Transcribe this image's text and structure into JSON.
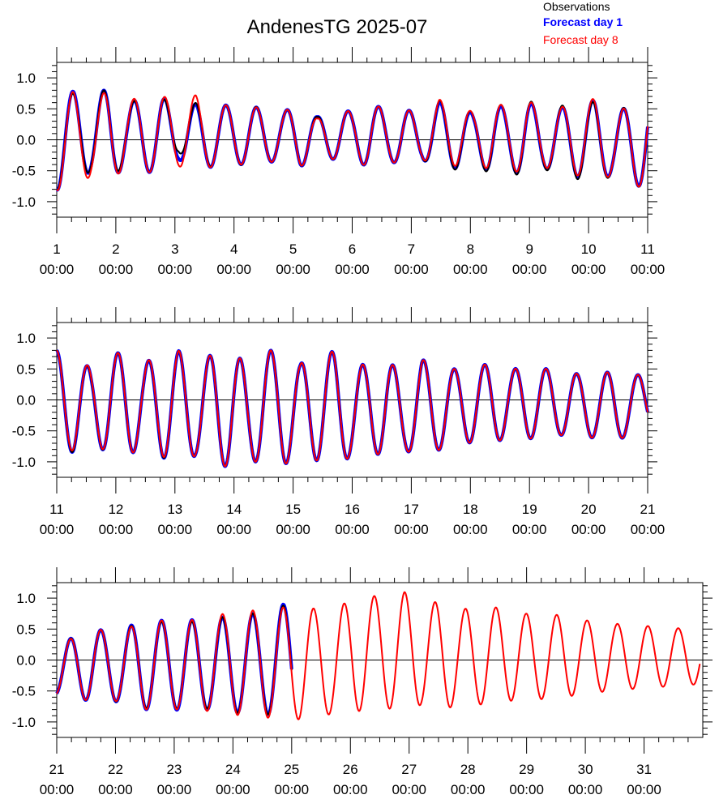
{
  "chart_data": {
    "type": "line",
    "title": "AndenesTG 2025-07",
    "legend": [
      {
        "label": "Observations",
        "color": "#000000",
        "bold": false
      },
      {
        "label": "Forecast day 1",
        "color": "#0000ff",
        "bold": true
      },
      {
        "label": "Forecast day 8",
        "color": "#ff0000",
        "bold": false
      }
    ],
    "legend_position": "top-right",
    "ylim": [
      -1.25,
      1.25
    ],
    "yticks": [
      "1.0",
      "0.5",
      "0.0",
      "-0.5",
      "-1.0"
    ],
    "ytick_values": [
      1.0,
      0.5,
      0.0,
      -0.5,
      -1.0
    ],
    "x_unit": "day of July 2025",
    "panels": [
      {
        "xrange": [
          1,
          11
        ],
        "xticks": [
          {
            "day": "1",
            "time": "00:00"
          },
          {
            "day": "2",
            "time": "00:00"
          },
          {
            "day": "3",
            "time": "00:00"
          },
          {
            "day": "4",
            "time": "00:00"
          },
          {
            "day": "5",
            "time": "00:00"
          },
          {
            "day": "6",
            "time": "00:00"
          },
          {
            "day": "7",
            "time": "00:00"
          },
          {
            "day": "8",
            "time": "00:00"
          },
          {
            "day": "9",
            "time": "00:00"
          },
          {
            "day": "10",
            "time": "00:00"
          },
          {
            "day": "11",
            "time": "00:00"
          }
        ],
        "series": [
          {
            "name": "Observations",
            "x0": 1.0,
            "x1": 11.0,
            "amp": [
              0.82,
              0.66,
              0.6,
              0.75,
              0.48,
              0.6,
              0.62,
              0.32,
              0.5,
              0.5,
              0.48,
              0.49,
              0.43,
              0.4,
              0.5,
              0.32,
              0.4,
              0.4,
              0.52,
              0.42,
              0.44,
              0.36,
              0.58,
              0.52,
              0.42,
              0.58,
              0.52,
              0.66,
              0.48,
              0.55,
              0.62,
              0.66,
              0.5,
              0.66,
              0.78
            ],
            "mean": [
              0.0,
              0.08,
              0.08,
              0.1,
              0.1,
              0.08,
              0.08,
              0.12,
              0.1,
              0.06,
              0.08,
              0.08,
              0.06,
              0.06,
              0.06,
              0.05,
              0.08,
              0.06,
              0.08,
              0.06,
              0.06,
              0.05,
              0.06,
              0.04,
              0.02,
              0.02,
              0.02,
              0.02,
              0.0,
              0.0,
              -0.02,
              -0.05,
              -0.08,
              -0.08,
              0.0
            ]
          },
          {
            "name": "Forecast day 1",
            "x0": 1.0,
            "x1": 11.0,
            "amp": [
              0.82,
              0.7,
              0.6,
              0.75,
              0.52,
              0.6,
              0.62,
              0.42,
              0.52,
              0.5,
              0.48,
              0.48,
              0.43,
              0.4,
              0.5,
              0.32,
              0.4,
              0.4,
              0.52,
              0.42,
              0.44,
              0.36,
              0.55,
              0.5,
              0.4,
              0.55,
              0.5,
              0.62,
              0.46,
              0.52,
              0.6,
              0.64,
              0.5,
              0.64,
              0.78
            ],
            "mean": [
              0.0,
              0.08,
              0.08,
              0.1,
              0.08,
              0.08,
              0.08,
              0.1,
              0.06,
              0.06,
              0.08,
              0.08,
              0.06,
              0.06,
              0.06,
              0.05,
              0.08,
              0.06,
              0.08,
              0.06,
              0.06,
              0.05,
              0.06,
              0.04,
              0.02,
              0.02,
              0.02,
              0.02,
              0.0,
              0.0,
              0.0,
              0.0,
              -0.08,
              -0.08,
              0.0
            ]
          },
          {
            "name": "Forecast day 8",
            "x0": 1.0,
            "x1": 11.0,
            "amp": [
              0.82,
              0.77,
              0.58,
              0.75,
              0.55,
              0.6,
              0.62,
              0.55,
              0.6,
              0.5,
              0.48,
              0.48,
              0.43,
              0.4,
              0.5,
              0.3,
              0.4,
              0.4,
              0.52,
              0.42,
              0.44,
              0.36,
              0.55,
              0.5,
              0.4,
              0.55,
              0.5,
              0.62,
              0.46,
              0.52,
              0.62,
              0.66,
              0.5,
              0.64,
              0.8
            ],
            "mean": [
              0.0,
              0.0,
              0.0,
              0.08,
              0.1,
              0.08,
              0.08,
              0.12,
              0.12,
              0.06,
              0.08,
              0.08,
              0.06,
              0.06,
              0.06,
              0.04,
              0.08,
              0.06,
              0.08,
              0.06,
              0.06,
              0.05,
              0.1,
              0.08,
              0.04,
              0.05,
              0.04,
              0.04,
              0.02,
              0.0,
              0.04,
              0.0,
              -0.08,
              -0.08,
              0.0
            ]
          }
        ]
      },
      {
        "xrange": [
          11,
          21
        ],
        "xticks": [
          {
            "day": "11",
            "time": "00:00"
          },
          {
            "day": "12",
            "time": "00:00"
          },
          {
            "day": "13",
            "time": "00:00"
          },
          {
            "day": "14",
            "time": "00:00"
          },
          {
            "day": "15",
            "time": "00:00"
          },
          {
            "day": "16",
            "time": "00:00"
          },
          {
            "day": "17",
            "time": "00:00"
          },
          {
            "day": "18",
            "time": "00:00"
          },
          {
            "day": "19",
            "time": "00:00"
          },
          {
            "day": "20",
            "time": "00:00"
          },
          {
            "day": "21",
            "time": "00:00"
          }
        ],
        "series": [
          {
            "name": "Observations",
            "x0": 11.0,
            "x1": 21.0,
            "amp": [
              0.8,
              0.75,
              0.62,
              0.8,
              0.82,
              0.7,
              0.85,
              0.92,
              0.72,
              0.88,
              0.96,
              0.78,
              0.9,
              0.92,
              0.78,
              0.88,
              0.88,
              0.72,
              0.74,
              0.78,
              0.6,
              0.78,
              0.66,
              0.6,
              0.64,
              0.64,
              0.54,
              0.58,
              0.56,
              0.52,
              0.5,
              0.52,
              0.56,
              0.48,
              0.44
            ],
            "mean": [
              0.0,
              -0.1,
              -0.1,
              -0.05,
              -0.05,
              -0.12,
              -0.07,
              -0.12,
              -0.18,
              -0.12,
              -0.15,
              -0.22,
              -0.1,
              -0.12,
              -0.2,
              -0.1,
              -0.1,
              -0.22,
              -0.12,
              -0.12,
              -0.22,
              -0.12,
              -0.15,
              -0.1,
              -0.05,
              -0.08,
              -0.05,
              -0.05,
              -0.05,
              -0.05,
              -0.08,
              -0.1,
              -0.1,
              -0.1,
              0.0
            ]
          },
          {
            "name": "Forecast day 1",
            "x0": 11.0,
            "x1": 21.0,
            "amp": [
              0.8,
              0.75,
              0.62,
              0.8,
              0.82,
              0.7,
              0.85,
              0.92,
              0.72,
              0.88,
              0.96,
              0.78,
              0.9,
              0.92,
              0.78,
              0.88,
              0.88,
              0.72,
              0.74,
              0.78,
              0.6,
              0.78,
              0.66,
              0.6,
              0.64,
              0.64,
              0.54,
              0.58,
              0.56,
              0.52,
              0.5,
              0.52,
              0.56,
              0.48,
              0.44
            ],
            "mean": [
              0.0,
              -0.1,
              -0.1,
              -0.05,
              -0.05,
              -0.12,
              -0.07,
              -0.12,
              -0.18,
              -0.12,
              -0.15,
              -0.22,
              -0.1,
              -0.12,
              -0.2,
              -0.1,
              -0.1,
              -0.22,
              -0.12,
              -0.12,
              -0.22,
              -0.12,
              -0.15,
              -0.1,
              -0.05,
              -0.08,
              -0.05,
              -0.05,
              -0.05,
              -0.05,
              -0.08,
              -0.1,
              -0.1,
              -0.1,
              0.0
            ]
          },
          {
            "name": "Forecast day 8",
            "x0": 11.0,
            "x1": 21.0,
            "amp": [
              0.8,
              0.72,
              0.62,
              0.8,
              0.82,
              0.7,
              0.85,
              0.92,
              0.72,
              0.88,
              0.96,
              0.78,
              0.9,
              0.92,
              0.78,
              0.88,
              0.88,
              0.72,
              0.74,
              0.78,
              0.6,
              0.78,
              0.66,
              0.6,
              0.64,
              0.64,
              0.54,
              0.58,
              0.56,
              0.52,
              0.5,
              0.52,
              0.56,
              0.48,
              0.44
            ],
            "mean": [
              0.0,
              -0.1,
              -0.08,
              -0.05,
              -0.05,
              -0.12,
              -0.05,
              -0.12,
              -0.18,
              -0.12,
              -0.15,
              -0.22,
              -0.1,
              -0.12,
              -0.2,
              -0.1,
              -0.1,
              -0.22,
              -0.12,
              -0.12,
              -0.22,
              -0.12,
              -0.15,
              -0.1,
              -0.05,
              -0.08,
              -0.05,
              -0.05,
              -0.05,
              -0.05,
              -0.08,
              -0.1,
              -0.1,
              -0.1,
              0.0
            ]
          }
        ]
      },
      {
        "xrange": [
          21,
          32
        ],
        "xticks": [
          {
            "day": "21",
            "time": "00:00"
          },
          {
            "day": "22",
            "time": "00:00"
          },
          {
            "day": "23",
            "time": "00:00"
          },
          {
            "day": "24",
            "time": "00:00"
          },
          {
            "day": "25",
            "time": "00:00"
          },
          {
            "day": "26",
            "time": "00:00"
          },
          {
            "day": "27",
            "time": "00:00"
          },
          {
            "day": "28",
            "time": "00:00"
          },
          {
            "day": "29",
            "time": "00:00"
          },
          {
            "day": "30",
            "time": "00:00"
          },
          {
            "day": "31",
            "time": "00:00"
          }
        ],
        "series": [
          {
            "name": "Observations",
            "x0": 21.0,
            "x1": 25.0,
            "amp": [
              0.38,
              0.5,
              0.58,
              0.56,
              0.6,
              0.7,
              0.7,
              0.7,
              0.72,
              0.7,
              0.78,
              0.8,
              0.8,
              0.88,
              0.9
            ],
            "mean": [
              -0.18,
              -0.12,
              -0.08,
              -0.08,
              -0.1,
              -0.08,
              -0.08,
              -0.08,
              -0.1,
              -0.08,
              -0.08,
              -0.05,
              -0.05,
              -0.02,
              0.0
            ]
          },
          {
            "name": "Forecast day 1",
            "x0": 21.0,
            "x1": 25.0,
            "amp": [
              0.38,
              0.5,
              0.58,
              0.56,
              0.6,
              0.72,
              0.72,
              0.72,
              0.75,
              0.72,
              0.78,
              0.8,
              0.8,
              0.88,
              0.92
            ],
            "mean": [
              -0.18,
              -0.12,
              -0.08,
              -0.08,
              -0.1,
              -0.08,
              -0.08,
              -0.08,
              -0.1,
              -0.08,
              -0.08,
              -0.05,
              -0.05,
              -0.02,
              0.02
            ]
          },
          {
            "name": "Forecast day 8",
            "x0": 21.0,
            "x1": 31.95,
            "amp": [
              0.38,
              0.5,
              0.58,
              0.56,
              0.6,
              0.72,
              0.72,
              0.72,
              0.75,
              0.75,
              0.84,
              0.84,
              0.88,
              0.9,
              0.92,
              0.86,
              0.82,
              0.94,
              0.92,
              0.9,
              0.96,
              0.84,
              0.88,
              0.78,
              0.78,
              0.78,
              0.74,
              0.7,
              0.68,
              0.68,
              0.6,
              0.58,
              0.54,
              0.52,
              0.5,
              0.48,
              0.46,
              0.44
            ],
            "mean": [
              -0.18,
              -0.12,
              -0.08,
              -0.08,
              -0.1,
              -0.08,
              -0.08,
              -0.08,
              -0.1,
              -0.06,
              -0.05,
              -0.05,
              -0.05,
              -0.05,
              -0.04,
              -0.04,
              -0.05,
              0.1,
              0.12,
              0.12,
              0.14,
              0.12,
              0.05,
              0.05,
              0.05,
              0.08,
              0.08,
              0.05,
              0.05,
              0.05,
              0.05,
              0.05,
              0.05,
              0.05,
              0.05,
              0.05,
              0.05,
              0.05
            ]
          }
        ]
      }
    ]
  },
  "series_styles": [
    {
      "name": "Observations",
      "color": "#000000",
      "width": 2.0
    },
    {
      "name": "Forecast day 1",
      "color": "#0000ff",
      "width": 4.0
    },
    {
      "name": "Forecast day 8",
      "color": "#ff0000",
      "width": 2.0
    }
  ]
}
